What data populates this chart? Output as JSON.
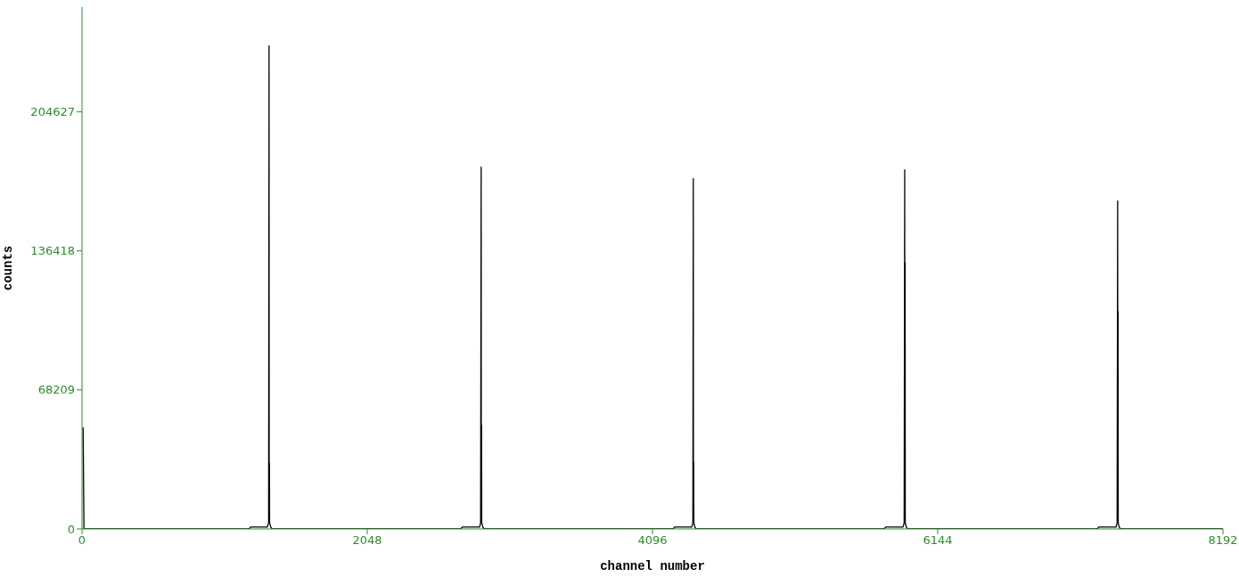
{
  "chart_data": {
    "type": "line",
    "xlabel": "channel number",
    "ylabel": "counts",
    "xlim": [
      0,
      8192
    ],
    "ylim": [
      0,
      256000
    ],
    "xticks": [
      0,
      2048,
      4096,
      6144,
      8192
    ],
    "yticks": [
      0,
      68209,
      136418,
      204627
    ],
    "marker": "none",
    "line_style": "solid",
    "series": [
      {
        "color": "#000000",
        "x": [
          8,
          14,
          20,
          1200,
          1210,
          1330,
          1340,
          1343,
          1344,
          1346,
          1347,
          1355,
          1365,
          2720,
          2730,
          2855,
          2862,
          2866,
          2867,
          2869,
          2870,
          2878,
          2888,
          4245,
          4255,
          4378,
          4386,
          4389,
          4390,
          4392,
          4393,
          4400,
          4410,
          5760,
          5770,
          5895,
          5903,
          5907,
          5908,
          5910,
          5911,
          5918,
          5928,
          6400,
          7290,
          7300,
          7425,
          7432,
          7436,
          7437,
          7439,
          7440,
          7447,
          7457,
          7700,
          8192
        ],
        "values": [
          49800,
          0,
          0,
          0,
          900,
          900,
          3000,
          237000,
          3000,
          32000,
          3000,
          900,
          0,
          0,
          900,
          900,
          3000,
          177500,
          3000,
          51000,
          3000,
          900,
          0,
          0,
          900,
          900,
          3000,
          171800,
          3000,
          32800,
          3000,
          900,
          0,
          0,
          900,
          900,
          3000,
          176200,
          3000,
          130700,
          3000,
          900,
          0,
          0,
          0,
          900,
          900,
          3000,
          160900,
          3000,
          106700,
          3000,
          900,
          0,
          0,
          0
        ]
      }
    ]
  }
}
